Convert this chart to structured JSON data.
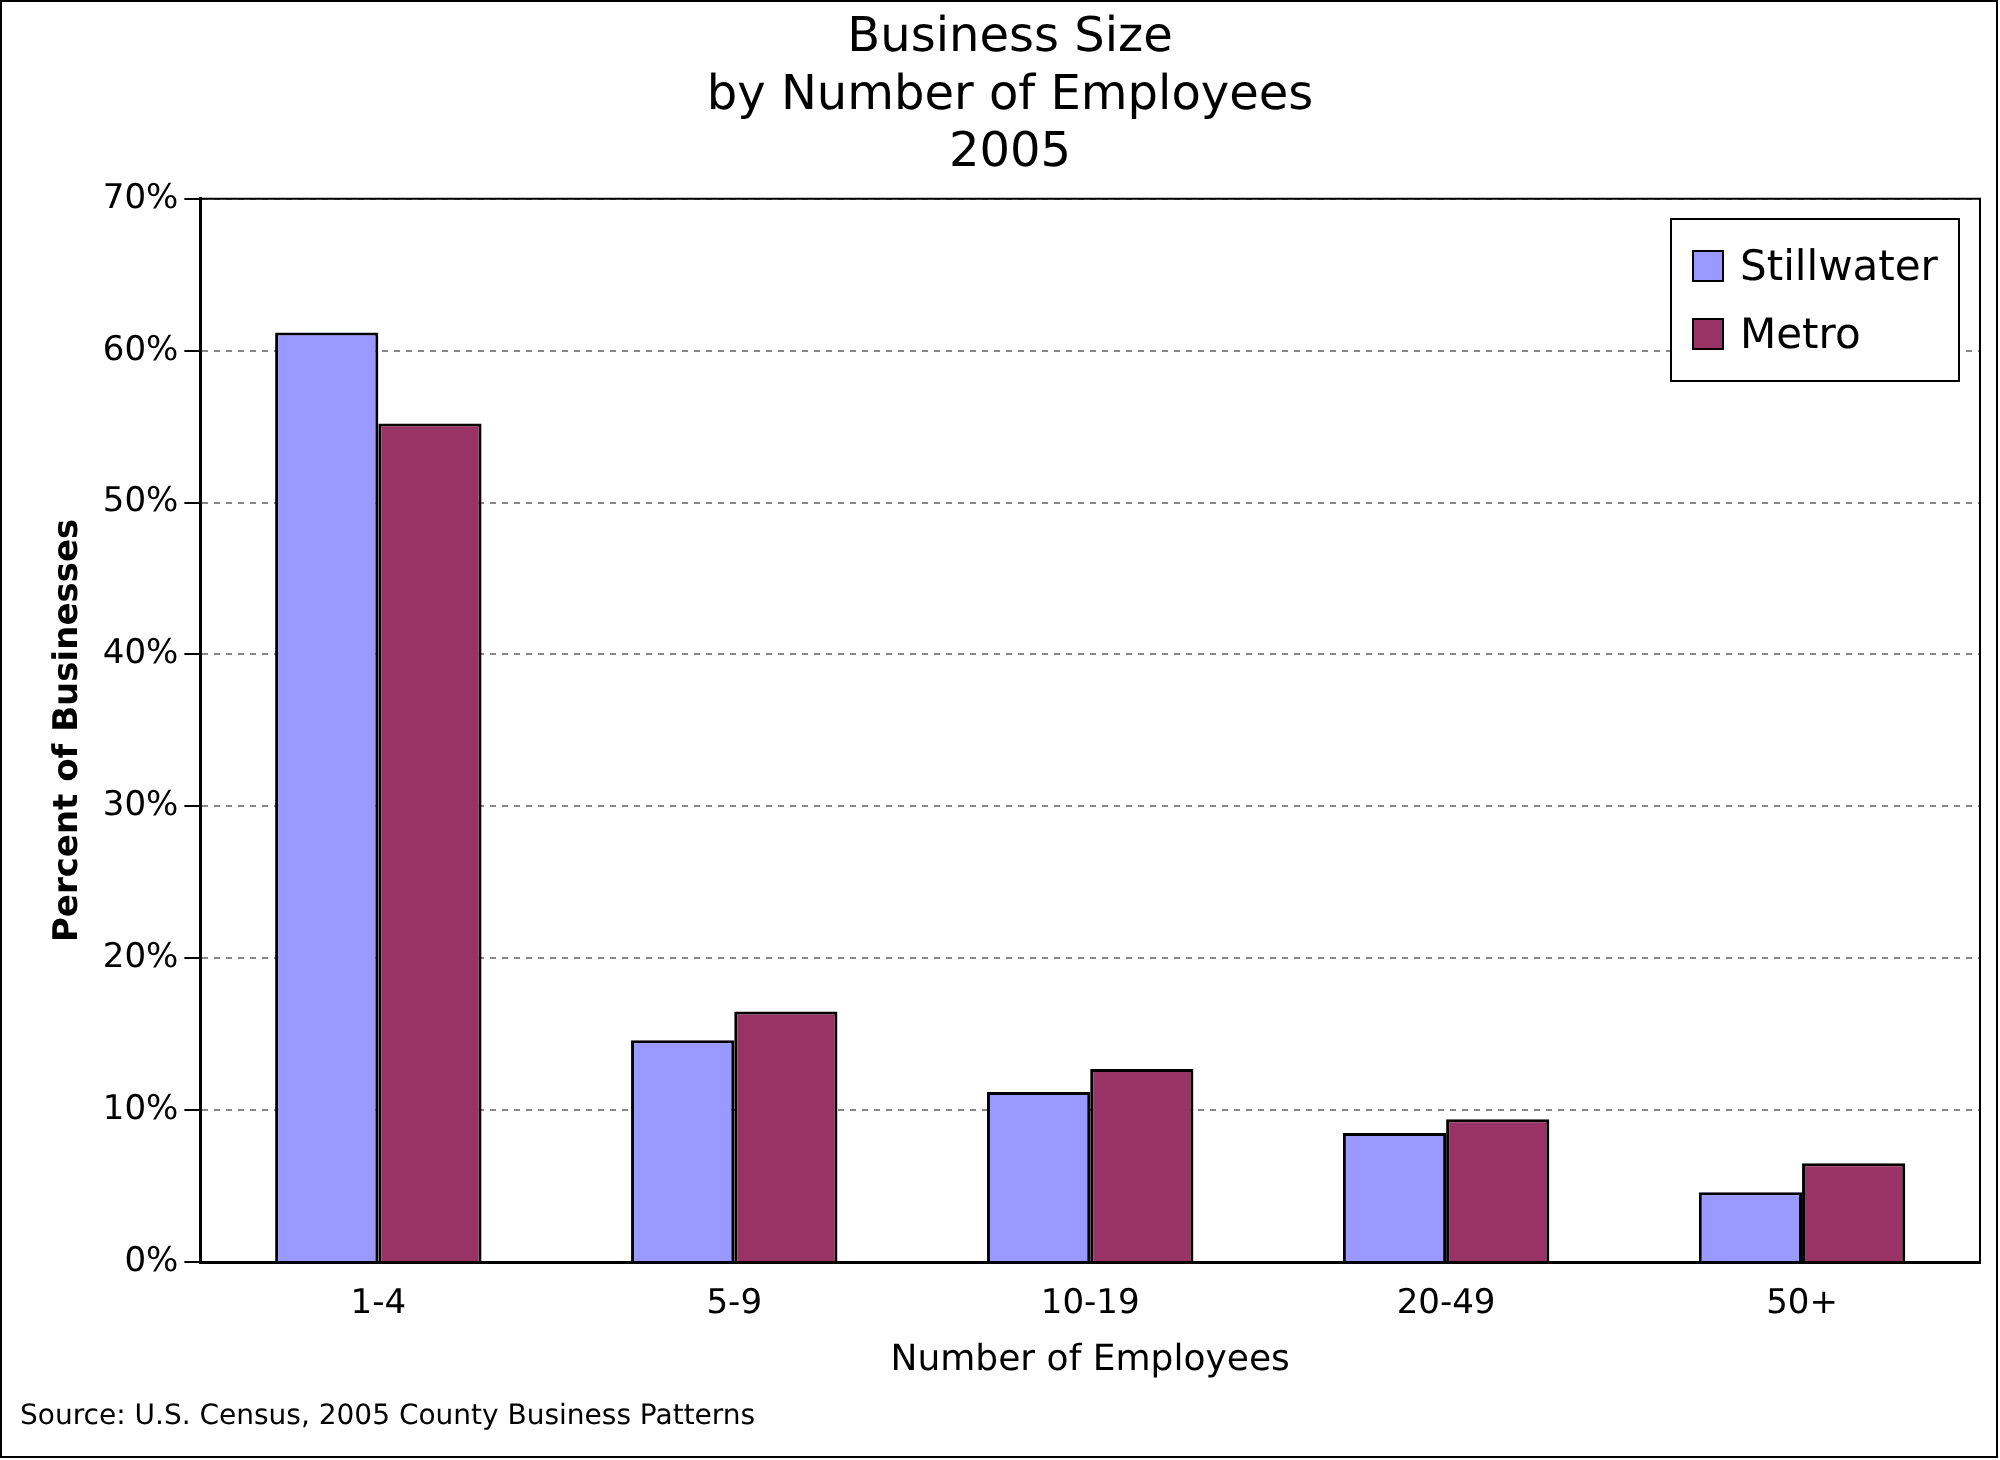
{
  "chart_data": {
    "type": "bar",
    "title": "Business Size\nby Number of Employees\n2005",
    "xlabel": "Number of Employees",
    "ylabel": "Percent of Businesses",
    "categories": [
      "1-4",
      "5-9",
      "10-19",
      "20-49",
      "50+"
    ],
    "series": [
      {
        "name": "Stillwater",
        "color": "#9999ff",
        "values": [
          61.2,
          14.6,
          11.2,
          8.5,
          4.6
        ]
      },
      {
        "name": "Metro",
        "color": "#993366",
        "values": [
          55.2,
          16.5,
          12.7,
          9.4,
          6.5
        ]
      }
    ],
    "ylim": [
      0,
      70
    ],
    "yticks": [
      {
        "value": 0,
        "label": "0%"
      },
      {
        "value": 10,
        "label": "10%"
      },
      {
        "value": 20,
        "label": "20%"
      },
      {
        "value": 30,
        "label": "30%"
      },
      {
        "value": 40,
        "label": "40%"
      },
      {
        "value": 50,
        "label": "50%"
      },
      {
        "value": 60,
        "label": "60%"
      },
      {
        "value": 70,
        "label": "70%"
      }
    ],
    "grid": "y",
    "legend": "top right",
    "annotations": [
      "Source: U.S. Census, 2005 County Business Patterns"
    ]
  }
}
